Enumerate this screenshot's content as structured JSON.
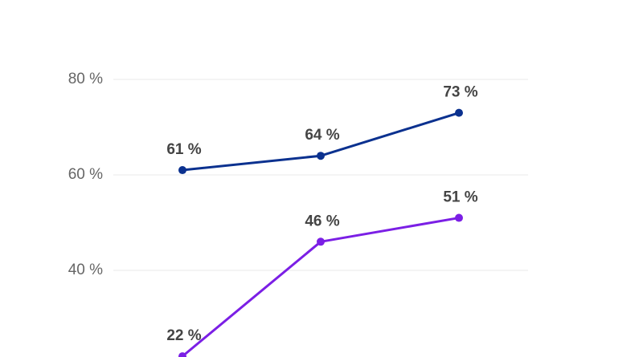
{
  "chart_data": {
    "type": "line",
    "categories": [
      null,
      null,
      null
    ],
    "series": [
      {
        "color": "#0b318f",
        "values": [
          61,
          64,
          73
        ],
        "value_labels": [
          "61 %",
          "64 %",
          "73 %"
        ]
      },
      {
        "color": "#7b1fe5",
        "values": [
          22,
          46,
          51
        ],
        "value_labels": [
          "22 %",
          "46 %",
          "51 %"
        ]
      }
    ],
    "ylim": [
      20,
      80
    ],
    "yticks": [
      {
        "value": 40,
        "label": "40 %"
      },
      {
        "value": 60,
        "label": "60 %"
      },
      {
        "value": 80,
        "label": "80 %"
      }
    ],
    "grid": true
  }
}
